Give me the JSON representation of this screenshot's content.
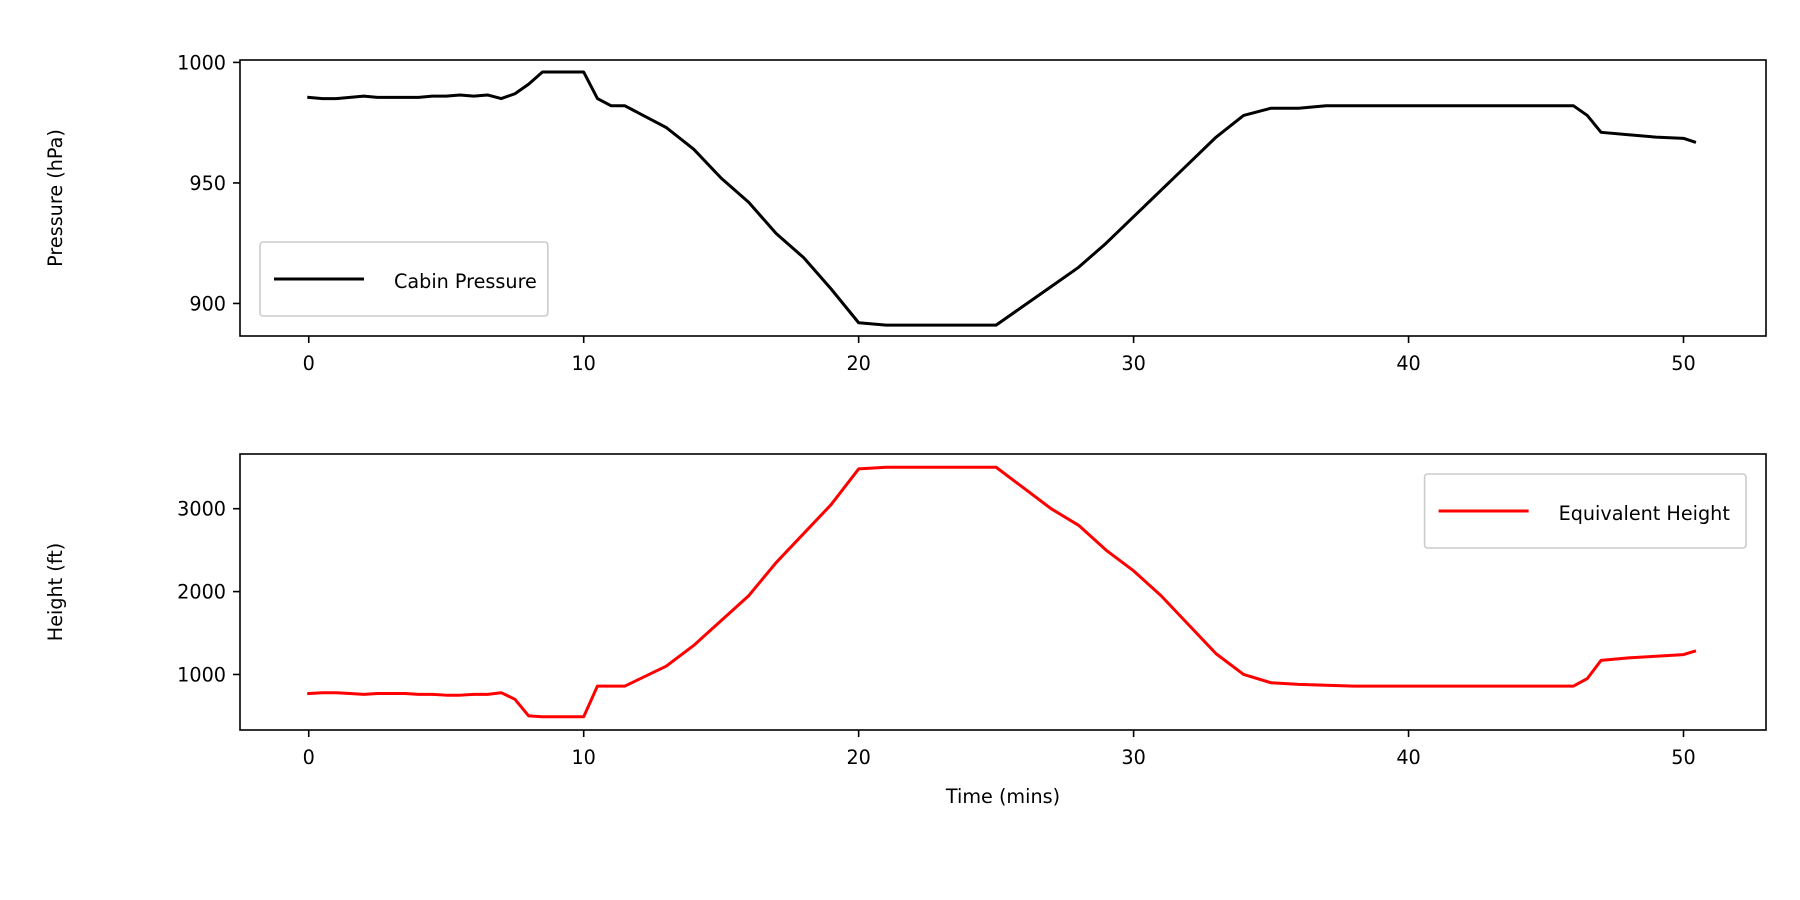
{
  "chart_data": [
    {
      "type": "line",
      "xlabel": "",
      "ylabel": "Pressure (hPa)",
      "xlim": [
        -2.5,
        53
      ],
      "ylim": [
        886.5,
        1001
      ],
      "xticks": [
        0,
        10,
        20,
        30,
        40,
        50
      ],
      "yticks": [
        900,
        950,
        1000
      ],
      "legend_position": "lower-left",
      "series": [
        {
          "name": "Cabin Pressure",
          "color": "#000000",
          "x": [
            0,
            0.5,
            1,
            1.5,
            2,
            2.5,
            3,
            3.5,
            4,
            4.5,
            5,
            5.5,
            6,
            6.5,
            7,
            7.5,
            8,
            8.5,
            9,
            9.5,
            10,
            10.5,
            11,
            11.5,
            12,
            13,
            14,
            15,
            16,
            17,
            18,
            19,
            20,
            21,
            22,
            23,
            24,
            25,
            26,
            27,
            28,
            29,
            30,
            31,
            32,
            33,
            34,
            35,
            36,
            37,
            38,
            39,
            40,
            41,
            42,
            43,
            44,
            45,
            46,
            46.5,
            47,
            48,
            49,
            50,
            50.4
          ],
          "y": [
            985.5,
            985,
            985,
            985.5,
            986,
            985.5,
            985.5,
            985.5,
            985.5,
            986,
            986,
            986.5,
            986,
            986.5,
            985,
            987,
            991,
            996,
            996,
            996,
            996,
            985,
            982,
            982,
            979,
            973,
            964,
            952,
            942,
            929,
            919,
            906,
            892,
            891,
            891,
            891,
            891,
            891,
            899,
            907,
            915,
            925,
            936,
            947,
            958,
            969,
            978,
            981,
            981,
            982,
            982,
            982,
            982,
            982,
            982,
            982,
            982,
            982,
            982,
            978,
            971,
            970,
            969,
            968.5,
            967
          ]
        }
      ]
    },
    {
      "type": "line",
      "xlabel": "Time (mins)",
      "ylabel": "Height (ft)",
      "xlim": [
        -2.5,
        53
      ],
      "ylim": [
        330,
        3660
      ],
      "xticks": [
        0,
        10,
        20,
        30,
        40,
        50
      ],
      "yticks": [
        1000,
        2000,
        3000
      ],
      "legend_position": "upper-right",
      "series": [
        {
          "name": "Equivalent Height",
          "color": "#ff0000",
          "x": [
            0,
            0.5,
            1,
            1.5,
            2,
            2.5,
            3,
            3.5,
            4,
            4.5,
            5,
            5.5,
            6,
            6.5,
            7,
            7.5,
            8,
            8.5,
            9,
            9.5,
            10,
            10.5,
            11,
            11.5,
            12,
            13,
            14,
            15,
            16,
            17,
            18,
            19,
            20,
            21,
            22,
            23,
            24,
            25,
            26,
            27,
            28,
            29,
            30,
            31,
            32,
            33,
            34,
            35,
            36,
            37,
            38,
            39,
            40,
            41,
            42,
            43,
            44,
            45,
            46,
            46.5,
            47,
            48,
            49,
            50,
            50.4
          ],
          "y": [
            770,
            780,
            780,
            770,
            760,
            770,
            770,
            770,
            760,
            760,
            750,
            750,
            760,
            760,
            780,
            700,
            500,
            490,
            490,
            490,
            490,
            860,
            860,
            860,
            940,
            1100,
            1350,
            1650,
            1950,
            2350,
            2700,
            3050,
            3480,
            3500,
            3500,
            3500,
            3500,
            3500,
            3250,
            3000,
            2800,
            2500,
            2250,
            1950,
            1600,
            1250,
            1000,
            900,
            880,
            870,
            860,
            860,
            860,
            860,
            860,
            860,
            860,
            860,
            860,
            950,
            1170,
            1200,
            1220,
            1240,
            1280
          ]
        }
      ]
    }
  ]
}
